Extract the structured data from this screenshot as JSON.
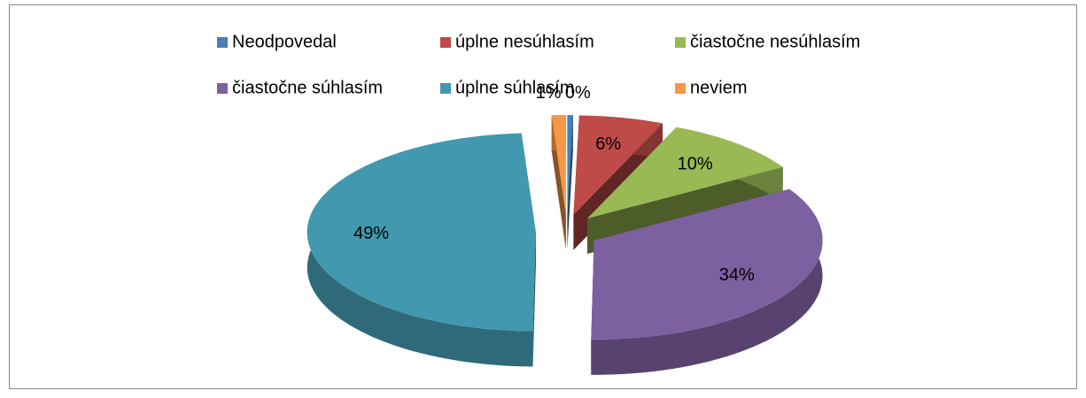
{
  "chart_data": {
    "type": "pie3d",
    "categories": [
      "Neodpovedal",
      "úplne nesúhlasím",
      "čiastočne nesúhlasím",
      "čiastočne súhlasím",
      "úplne súhlasím",
      "neviem"
    ],
    "values": [
      0.4,
      6,
      10,
      34,
      49,
      1
    ],
    "value_labels": [
      "0%",
      "6%",
      "10%",
      "34%",
      "49%",
      "1%"
    ],
    "colors": [
      "#4a7ebb",
      "#be4b48",
      "#98b954",
      "#7d60a0",
      "#4198af",
      "#f79646"
    ],
    "legend": "top"
  }
}
